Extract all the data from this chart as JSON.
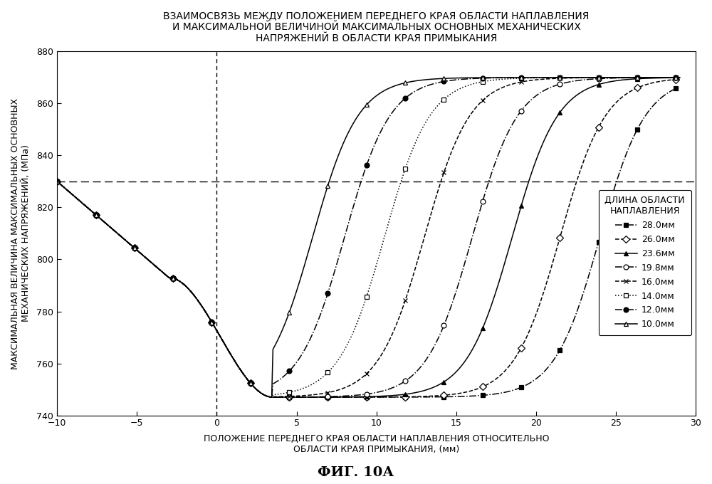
{
  "title": "ВЗАИМОСВЯЗЬ МЕЖДУ ПОЛОЖЕНИЕМ ПЕРЕДНЕГО КРАЯ ОБЛАСТИ НАПЛАВЛЕНИЯ\nИ МАКСИМАЛЬНОЙ ВЕЛИЧИНОЙ МАКСИМАЛЬНЫХ ОСНОВНЫХ МЕХАНИЧЕСКИХ\nНАПРЯЖЕНИЙ В ОБЛАСТИ КРАЯ ПРИМЫКАНИЯ",
  "xlabel_line1": "ПОЛОЖЕНИЕ ПЕРЕДНЕГО КРАЯ ОБЛАСТИ НАПЛАВЛЕНИЯ ОТНОСИТЕЛЬНО",
  "xlabel_line2": "ОБЛАСТИ КРАЯ ПРИМЫКАНИЯ, (мм)",
  "ylabel_line1": "МАКСИМАЛЬНАЯ ВЕЛИЧИНА МАКСИМАЛЬНЫХ ОСНОВНЫХ",
  "ylabel_line2": "МЕХАНИЧЕСКИХ НАПРЯЖЕНИЙ, (МПа)",
  "legend_title": "ДЛИНА ОБЛАСТИ\nНАПЛАВЛЕНИЯ",
  "figcaption": "ФИГ. 10А",
  "xlim": [
    -10,
    30
  ],
  "ylim": [
    740,
    880
  ],
  "xticks": [
    -10,
    -5,
    0,
    5,
    10,
    15,
    20,
    25,
    30
  ],
  "yticks": [
    740,
    760,
    780,
    800,
    820,
    840,
    860,
    880
  ],
  "hline_y": 830,
  "vline_x": 0,
  "series": [
    {
      "label": "28.0мм",
      "linestyle": "-.",
      "marker": "s",
      "filled": true,
      "x_center": 24.0
    },
    {
      "label": "26.0мм",
      "linestyle": "--",
      "marker": "D",
      "filled": false,
      "x_center": 21.5
    },
    {
      "label": "23.6мм",
      "linestyle": "-",
      "marker": "^",
      "filled": true,
      "x_center": 18.5
    },
    {
      "label": "19.8мм",
      "linestyle": "-.",
      "marker": "o",
      "filled": false,
      "x_center": 16.0
    },
    {
      "label": "16.0мм",
      "linestyle": "--",
      "marker": "x",
      "filled": true,
      "x_center": 13.0
    },
    {
      "label": "14.0мм",
      "linestyle": ":",
      "marker": "s",
      "filled": false,
      "x_center": 10.5
    },
    {
      "label": "12.0мм",
      "linestyle": "-.",
      "marker": "o",
      "filled": true,
      "x_center": 8.0
    },
    {
      "label": "10.0мм",
      "linestyle": "-",
      "marker": "^",
      "filled": false,
      "x_center": 6.0
    }
  ]
}
